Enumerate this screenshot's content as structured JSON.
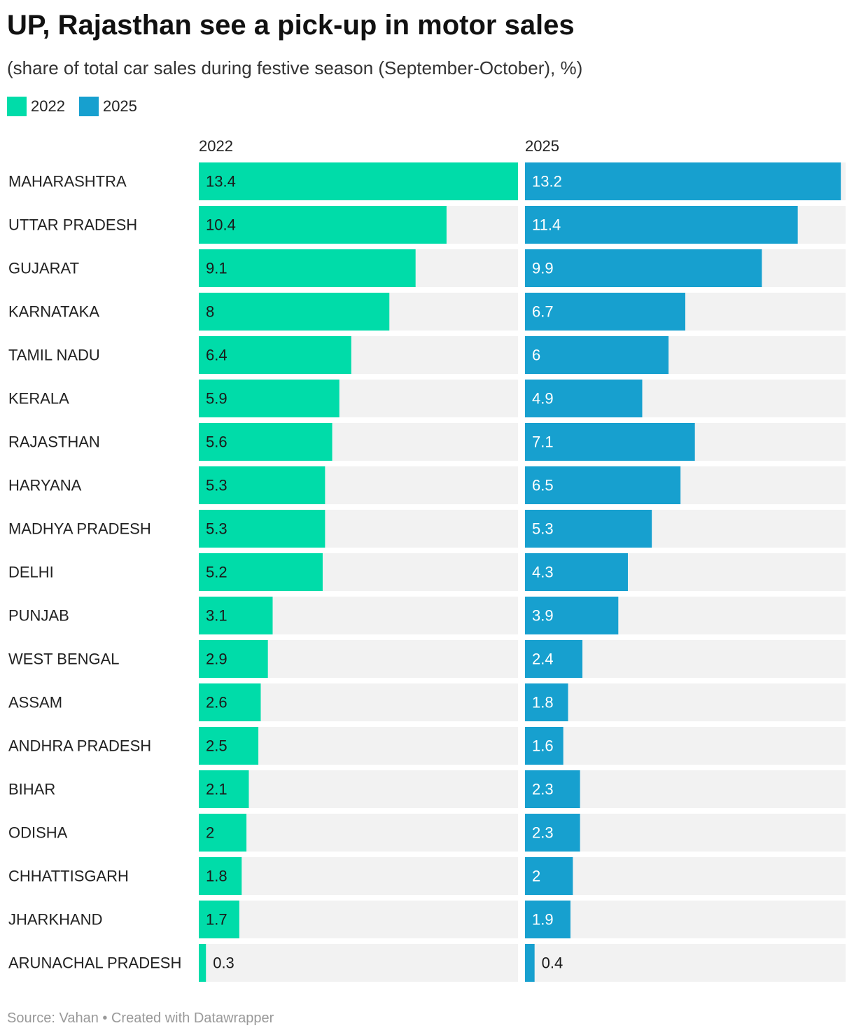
{
  "title": "UP, Rajasthan see a pick-up in motor sales",
  "subtitle": "(share of total car sales during festive season (September-October), %)",
  "legend": [
    {
      "label": "2022",
      "color": "#00dca9"
    },
    {
      "label": "2025",
      "color": "#17a0cf"
    }
  ],
  "footer": {
    "source": "Source: Vahan",
    "separator": "•",
    "credit": "Created with Datawrapper"
  },
  "chart_data": {
    "type": "bar",
    "orientation": "horizontal",
    "layout": "split-columns",
    "title": "UP, Rajasthan see a pick-up in motor sales",
    "subtitle": "(share of total car sales during festive season (September-October), %)",
    "xlim": [
      0,
      13.4
    ],
    "track_color": "#f2f2f2",
    "categories": [
      "MAHARASHTRA",
      "UTTAR PRADESH",
      "GUJARAT",
      "KARNATAKA",
      "TAMIL NADU",
      "KERALA",
      "RAJASTHAN",
      "HARYANA",
      "MADHYA PRADESH",
      "DELHI",
      "PUNJAB",
      "WEST BENGAL",
      "ASSAM",
      "ANDHRA PRADESH",
      "BIHAR",
      "ODISHA",
      "CHHATTISGARH",
      "JHARKHAND",
      "ARUNACHAL PRADESH"
    ],
    "series": [
      {
        "name": "2022",
        "color": "#00dca9",
        "values": [
          13.4,
          10.4,
          9.1,
          8,
          6.4,
          5.9,
          5.6,
          5.3,
          5.3,
          5.2,
          3.1,
          2.9,
          2.6,
          2.5,
          2.1,
          2,
          1.8,
          1.7,
          0.3
        ]
      },
      {
        "name": "2025",
        "color": "#17a0cf",
        "values": [
          13.2,
          11.4,
          9.9,
          6.7,
          6,
          4.9,
          7.1,
          6.5,
          5.3,
          4.3,
          3.9,
          2.4,
          1.8,
          1.6,
          2.3,
          2.3,
          2,
          1.9,
          0.4
        ]
      }
    ]
  }
}
